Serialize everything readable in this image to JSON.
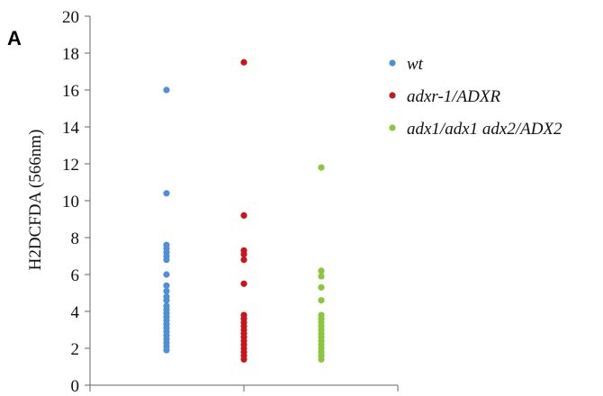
{
  "panel_label": "A",
  "chart_data": {
    "type": "scatter",
    "title": "",
    "xlabel": "",
    "ylabel": "H2DCFDA (566nm)",
    "ylim": [
      0,
      20
    ],
    "yticks": [
      0,
      2,
      4,
      6,
      8,
      10,
      12,
      14,
      16,
      18,
      20
    ],
    "grid": false,
    "legend_position": "top-right",
    "categories": [
      "",
      "",
      ""
    ],
    "series": [
      {
        "name": "wt",
        "color": "#4f8fd6",
        "category_index": 0,
        "values": [
          16.0,
          10.4,
          7.6,
          7.4,
          7.2,
          7.0,
          6.8,
          6.0,
          5.4,
          5.1,
          4.8,
          4.6,
          4.3,
          4.1,
          3.9,
          3.7,
          3.5,
          3.3,
          3.1,
          2.9,
          2.7,
          2.5,
          2.3,
          2.1,
          1.9
        ]
      },
      {
        "name": "adxr-1/ADXR",
        "color": "#c8161d",
        "category_index": 1,
        "values": [
          17.5,
          9.2,
          7.3,
          7.1,
          6.8,
          5.5,
          3.8,
          3.6,
          3.4,
          3.2,
          3.0,
          2.8,
          2.6,
          2.4,
          2.2,
          2.0,
          1.8,
          1.6,
          1.4
        ]
      },
      {
        "name": "adx1/adx1 adx2/ADX2",
        "color": "#8cc63f",
        "category_index": 2,
        "values": [
          11.8,
          6.2,
          5.9,
          5.3,
          4.6,
          3.8,
          3.6,
          3.4,
          3.2,
          3.0,
          2.8,
          2.6,
          2.4,
          2.2,
          2.0,
          1.8,
          1.6,
          1.4
        ]
      }
    ]
  }
}
